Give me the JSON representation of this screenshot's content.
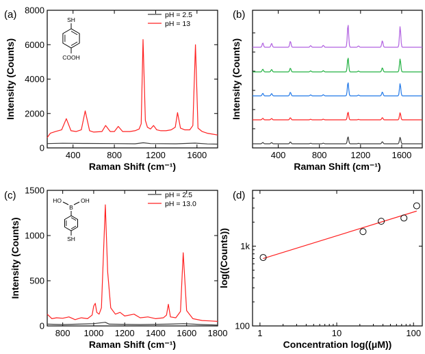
{
  "chart_data": [
    {
      "panel": "(a)",
      "type": "line",
      "xlabel": "Raman Shift (cm⁻¹)",
      "ylabel": "Intensity (Counts)",
      "xlim": [
        150,
        1800
      ],
      "ylim": [
        0,
        8000
      ],
      "xticks": [
        "400",
        "800",
        "1200",
        "1600"
      ],
      "yticks": [
        "0",
        "2000",
        "4000",
        "6000",
        "8000"
      ],
      "legend_position": "top-right",
      "molecule": {
        "top": "SH",
        "bottom": "COOH"
      },
      "colors": {
        "low": "#3a3a3a",
        "high": "#ff2020"
      },
      "series": [
        {
          "name": "pH = 2.5",
          "color": "#3a3a3a",
          "points": [
            [
              150,
              250
            ],
            [
              300,
              270
            ],
            [
              500,
              260
            ],
            [
              800,
              250
            ],
            [
              1000,
              240
            ],
            [
              1080,
              300
            ],
            [
              1150,
              250
            ],
            [
              1400,
              240
            ],
            [
              1580,
              280
            ],
            [
              1700,
              230
            ],
            [
              1800,
              220
            ]
          ]
        },
        {
          "name": "pH = 13",
          "color": "#ff2020",
          "points": [
            [
              150,
              600
            ],
            [
              180,
              850
            ],
            [
              230,
              950
            ],
            [
              290,
              1050
            ],
            [
              335,
              1700
            ],
            [
              380,
              1000
            ],
            [
              430,
              950
            ],
            [
              480,
              1050
            ],
            [
              518,
              2150
            ],
            [
              560,
              1000
            ],
            [
              600,
              920
            ],
            [
              680,
              950
            ],
            [
              715,
              1300
            ],
            [
              760,
              950
            ],
            [
              800,
              950
            ],
            [
              838,
              1250
            ],
            [
              880,
              950
            ],
            [
              950,
              950
            ],
            [
              1000,
              1000
            ],
            [
              1040,
              1100
            ],
            [
              1060,
              1400
            ],
            [
              1078,
              6300
            ],
            [
              1100,
              1600
            ],
            [
              1120,
              1200
            ],
            [
              1150,
              1100
            ],
            [
              1180,
              1300
            ],
            [
              1210,
              1050
            ],
            [
              1250,
              1000
            ],
            [
              1300,
              1000
            ],
            [
              1350,
              1050
            ],
            [
              1390,
              1200
            ],
            [
              1412,
              2050
            ],
            [
              1440,
              1150
            ],
            [
              1480,
              1050
            ],
            [
              1530,
              1050
            ],
            [
              1560,
              1300
            ],
            [
              1585,
              6000
            ],
            [
              1610,
              1150
            ],
            [
              1650,
              950
            ],
            [
              1700,
              850
            ],
            [
              1750,
              800
            ],
            [
              1800,
              750
            ]
          ]
        }
      ]
    },
    {
      "panel": "(b)",
      "type": "line",
      "xlabel": "Raman Shift (cm⁻¹)",
      "ylabel": "Intensity (Counts)",
      "xlim": [
        150,
        1800
      ],
      "xticks": [
        "400",
        "800",
        "1200",
        "1600"
      ],
      "y_tick_labels_shown": false,
      "series": [
        {
          "color": "#3a3a3a",
          "offset": 0,
          "scale": 0.5
        },
        {
          "color": "#ff2020",
          "offset": 1,
          "scale": 0.55
        },
        {
          "color": "#1f77e8",
          "offset": 2,
          "scale": 0.95
        },
        {
          "color": "#20b040",
          "offset": 3,
          "scale": 1.0
        },
        {
          "color": "#b060e0",
          "offset": 4,
          "scale": 1.6
        }
      ],
      "peaks": [
        [
          250,
          0.4
        ],
        [
          335,
          0.35
        ],
        [
          518,
          0.55
        ],
        [
          715,
          0.15
        ],
        [
          838,
          0.18
        ],
        [
          1078,
          2.1
        ],
        [
          1180,
          0.12
        ],
        [
          1412,
          0.6
        ],
        [
          1585,
          1.9
        ]
      ]
    },
    {
      "panel": "(c)",
      "type": "line",
      "xlabel": "Raman Shift (cm⁻¹)",
      "ylabel": "Intensity (Counts)",
      "xlim": [
        700,
        1800
      ],
      "ylim": [
        0,
        1500
      ],
      "xticks": [
        "800",
        "1000",
        "1200",
        "1400",
        "1600",
        "1800"
      ],
      "yticks": [
        "0",
        "500",
        "1000",
        "1500"
      ],
      "legend_position": "top-right",
      "molecule": {
        "top_left": "HO",
        "top_mid": "B",
        "top_right": "OH",
        "bottom": "SH"
      },
      "series": [
        {
          "name": "pH = 2.5",
          "color": "#3a3a3a",
          "points": [
            [
              700,
              20
            ],
            [
              800,
              15
            ],
            [
              900,
              20
            ],
            [
              1000,
              25
            ],
            [
              1075,
              40
            ],
            [
              1100,
              20
            ],
            [
              1300,
              15
            ],
            [
              1480,
              20
            ],
            [
              1580,
              25
            ],
            [
              1700,
              15
            ],
            [
              1800,
              10
            ]
          ]
        },
        {
          "name": "pH = 13.0",
          "color": "#ff2020",
          "points": [
            [
              700,
              130
            ],
            [
              730,
              80
            ],
            [
              760,
              90
            ],
            [
              800,
              85
            ],
            [
              840,
              100
            ],
            [
              880,
              70
            ],
            [
              920,
              90
            ],
            [
              960,
              80
            ],
            [
              990,
              120
            ],
            [
              1000,
              220
            ],
            [
              1010,
              250
            ],
            [
              1020,
              150
            ],
            [
              1035,
              130
            ],
            [
              1050,
              200
            ],
            [
              1075,
              1340
            ],
            [
              1090,
              600
            ],
            [
              1110,
              200
            ],
            [
              1140,
              130
            ],
            [
              1170,
              150
            ],
            [
              1200,
              110
            ],
            [
              1260,
              130
            ],
            [
              1300,
              90
            ],
            [
              1350,
              100
            ],
            [
              1400,
              80
            ],
            [
              1450,
              90
            ],
            [
              1470,
              120
            ],
            [
              1482,
              240
            ],
            [
              1495,
              100
            ],
            [
              1530,
              90
            ],
            [
              1560,
              160
            ],
            [
              1578,
              810
            ],
            [
              1600,
              170
            ],
            [
              1640,
              80
            ],
            [
              1700,
              60
            ],
            [
              1750,
              55
            ],
            [
              1800,
              50
            ]
          ]
        }
      ]
    },
    {
      "panel": "(d)",
      "type": "scatter",
      "xlabel": "Concentration log((μM))",
      "ylabel": "log((Counts))",
      "xscale": "log",
      "yscale": "log",
      "xlim": [
        0.8,
        130
      ],
      "ylim": [
        100,
        5000
      ],
      "xticks": [
        "1",
        "10",
        "100"
      ],
      "yticks": [
        "100",
        "1k"
      ],
      "points": [
        [
          1.1,
          720
        ],
        [
          22,
          1520
        ],
        [
          38,
          2050
        ],
        [
          75,
          2250
        ],
        [
          110,
          3200
        ]
      ],
      "fit": [
        [
          1.1,
          700
        ],
        [
          110,
          2750
        ]
      ],
      "fit_color": "#ff2020"
    }
  ]
}
